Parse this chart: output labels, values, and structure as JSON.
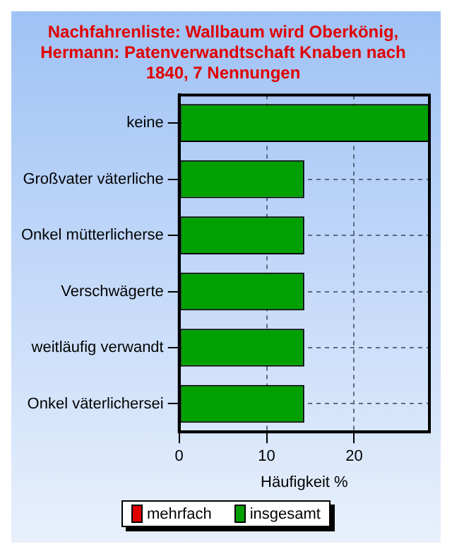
{
  "chart_data": {
    "type": "bar",
    "orientation": "horizontal",
    "title": "Nachfahrenliste: Wallbaum wird Oberkönig, Hermann: Patenverwandtschaft Knaben nach 1840, 7 Nennungen",
    "xlabel": "Häufigkeit %",
    "categories": [
      "keine",
      "Großvater väterliche",
      "Onkel mütterlicherse",
      "Verschwägerte",
      "weitläufig verwandt",
      "Onkel väterlichersei"
    ],
    "series": [
      {
        "name": "mehrfach",
        "color": "#e00000",
        "values": [
          null,
          null,
          null,
          null,
          null,
          null
        ]
      },
      {
        "name": "insgesamt",
        "color": "#00a000",
        "values": [
          28.6,
          14.3,
          14.3,
          14.3,
          14.3,
          14.3
        ]
      }
    ],
    "xlim": [
      0,
      28.6
    ],
    "xticks": [
      0,
      10,
      20
    ],
    "grid": true,
    "legend": "bottom"
  }
}
